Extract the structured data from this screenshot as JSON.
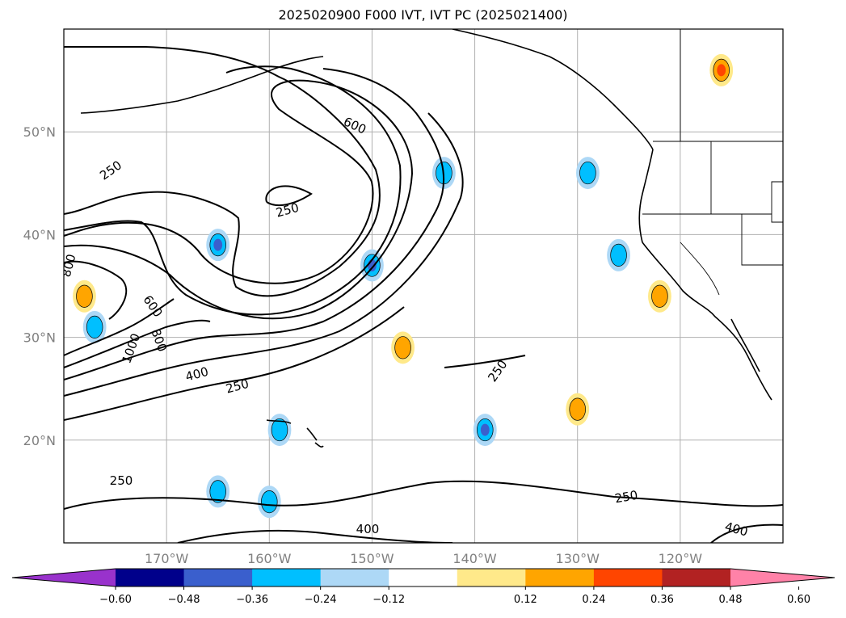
{
  "title": "2025020900 F000 IVT, IVT PC (2025021400)",
  "map": {
    "projection": "PlateCarree",
    "lon_range": [
      -180,
      -110
    ],
    "lat_range": [
      10,
      60
    ],
    "x_ticks": [
      {
        "lon": -170,
        "label": "170°W"
      },
      {
        "lon": -160,
        "label": "160°W"
      },
      {
        "lon": -150,
        "label": "150°W"
      },
      {
        "lon": -140,
        "label": "140°W"
      },
      {
        "lon": -130,
        "label": "130°W"
      },
      {
        "lon": -120,
        "label": "120°W"
      }
    ],
    "y_ticks": [
      {
        "lat": 20,
        "label": "20°N"
      },
      {
        "lat": 30,
        "label": "30°N"
      },
      {
        "lat": 40,
        "label": "40°N"
      },
      {
        "lat": 50,
        "label": "50°N"
      }
    ],
    "gridlines": true,
    "contour_labels": [
      "250",
      "250",
      "250",
      "250",
      "250",
      "250",
      "400",
      "400",
      "400",
      "600",
      "600",
      "800",
      "800",
      "1000"
    ],
    "anomaly_patches": [
      {
        "lon": -143,
        "lat": 46,
        "level": "cyan"
      },
      {
        "lon": -129,
        "lat": 46,
        "level": "cyan"
      },
      {
        "lon": -126,
        "lat": 38,
        "level": "cyan"
      },
      {
        "lon": -150,
        "lat": 37,
        "level": "blue"
      },
      {
        "lon": -165,
        "lat": 39,
        "level": "blue"
      },
      {
        "lon": -139,
        "lat": 21,
        "level": "blue"
      },
      {
        "lon": -159,
        "lat": 21,
        "level": "cyan"
      },
      {
        "lon": -165,
        "lat": 15,
        "level": "cyan"
      },
      {
        "lon": -160,
        "lat": 14,
        "level": "cyan"
      },
      {
        "lon": -177,
        "lat": 31,
        "level": "cyan"
      },
      {
        "lon": -147,
        "lat": 29,
        "level": "orange"
      },
      {
        "lon": -116,
        "lat": 56,
        "level": "red"
      },
      {
        "lon": -130,
        "lat": 23,
        "level": "orange"
      },
      {
        "lon": -122,
        "lat": 34,
        "level": "orange"
      },
      {
        "lon": -178,
        "lat": 34,
        "level": "orange"
      }
    ]
  },
  "colorbar": {
    "ticks": [
      "−0.60",
      "−0.48",
      "−0.36",
      "−0.24",
      "−0.12",
      "0.12",
      "0.24",
      "0.36",
      "0.48",
      "0.60"
    ],
    "colors": [
      "#9932cc",
      "#00008b",
      "#3a5fcd",
      "#00bfff",
      "#add8f6",
      "#ffffff",
      "#ffe98a",
      "#ffa500",
      "#ff4500",
      "#b22222",
      "#ff82a8"
    ]
  }
}
